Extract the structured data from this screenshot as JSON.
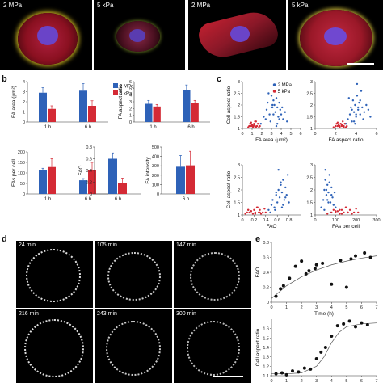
{
  "panel_a": {
    "images": [
      {
        "label": "2 MPa"
      },
      {
        "label": "5 kPa"
      },
      {
        "label": "2 MPa"
      },
      {
        "label": "5 kPa"
      }
    ]
  },
  "panel_letters": {
    "b": "b",
    "c": "c",
    "d": "d",
    "e": "e"
  },
  "colors": {
    "stiff": "#2e62b8",
    "soft": "#d42a35",
    "axis": "#333333"
  },
  "chart_data": [
    {
      "id": "fa-area",
      "type": "bar",
      "ylabel": "FA area (µm²)",
      "categories": [
        "1 h",
        "6 h"
      ],
      "ylim": [
        0,
        4
      ],
      "yticks": [
        0,
        1,
        2,
        3,
        4
      ],
      "series": [
        {
          "name": "2 MPa",
          "values": [
            2.9,
            3.1
          ],
          "errors": [
            0.5,
            0.7
          ]
        },
        {
          "name": "5 kPa",
          "values": [
            1.3,
            1.6
          ],
          "errors": [
            0.3,
            0.5
          ]
        }
      ],
      "legend": "top-right"
    },
    {
      "id": "fa-aspect",
      "type": "bar",
      "ylabel": "FA aspect ratio",
      "categories": [
        "1 h",
        "6 h"
      ],
      "ylim": [
        0,
        6
      ],
      "yticks": [
        0,
        1,
        2,
        3,
        4,
        5,
        6
      ],
      "series": [
        {
          "name": "2 MPa",
          "values": [
            2.7,
            4.8
          ],
          "errors": [
            0.5,
            0.7
          ]
        },
        {
          "name": "5 kPa",
          "values": [
            2.3,
            2.8
          ],
          "errors": [
            0.3,
            0.4
          ]
        }
      ]
    },
    {
      "id": "fas-per-cell",
      "type": "bar",
      "ylabel": "FAs per cell",
      "categories": [
        "1 h",
        "6 h"
      ],
      "ylim": [
        0,
        200
      ],
      "yticks": [
        0,
        50,
        100,
        150,
        200
      ],
      "series": [
        {
          "name": "2 MPa",
          "values": [
            112,
            65
          ],
          "errors": [
            10,
            8
          ]
        },
        {
          "name": "5 kPa",
          "values": [
            128,
            115
          ],
          "errors": [
            40,
            35
          ]
        }
      ]
    },
    {
      "id": "fao",
      "type": "bar",
      "ylabel": "FAO",
      "categories": [
        "6 h"
      ],
      "ylim": [
        0,
        0.8
      ],
      "yticks": [
        0,
        0.2,
        0.4,
        0.6,
        0.8
      ],
      "series": [
        {
          "name": "2 MPa",
          "values": [
            0.6
          ],
          "errors": [
            0.1
          ]
        },
        {
          "name": "5 kPa",
          "values": [
            0.19
          ],
          "errors": [
            0.08
          ]
        }
      ]
    },
    {
      "id": "fa-intensity",
      "type": "bar",
      "ylabel": "FA intensity",
      "categories": [
        "6 h"
      ],
      "ylim": [
        0,
        500
      ],
      "yticks": [
        0,
        100,
        200,
        300,
        400,
        500
      ],
      "series": [
        {
          "name": "2 MPa",
          "values": [
            290
          ],
          "errors": [
            120
          ]
        },
        {
          "name": "5 kPa",
          "values": [
            305
          ],
          "errors": [
            150
          ]
        }
      ]
    },
    {
      "id": "scatter-fa-area",
      "type": "scatter",
      "xlabel": "FA area (µm²)",
      "ylabel": "Cell aspect ratio",
      "xlim": [
        0,
        6
      ],
      "ylim": [
        1.0,
        3.0
      ],
      "xticks": [
        0,
        1,
        2,
        3,
        4,
        5,
        6
      ],
      "yticks": [
        1.0,
        1.5,
        2.0,
        2.5,
        3.0
      ],
      "series": [
        {
          "name": "2 MPa",
          "x": [
            1.9,
            2.2,
            2.5,
            2.6,
            2.8,
            3.0,
            3.1,
            3.2,
            3.3,
            3.4,
            3.5,
            3.6,
            3.7,
            3.8,
            3.9,
            4.0,
            4.1,
            4.2,
            4.4,
            2.9,
            3.4,
            3.0,
            2.7,
            3.6,
            3.8,
            4.6,
            3.2,
            2.4,
            3.1,
            3.5
          ],
          "y": [
            1.2,
            1.5,
            1.8,
            2.1,
            1.6,
            2.4,
            1.9,
            2.2,
            2.0,
            1.7,
            2.3,
            1.9,
            1.5,
            2.1,
            1.8,
            1.6,
            1.9,
            1.4,
            1.7,
            1.3,
            2.6,
            1.9,
            2.5,
            1.2,
            1.4,
            1.3,
            1.6,
            1.4,
            2.0,
            1.1
          ]
        },
        {
          "name": "5 kPa",
          "x": [
            0.6,
            0.7,
            0.8,
            0.9,
            1.0,
            1.1,
            1.2,
            1.3,
            1.4,
            1.5,
            1.6,
            1.7,
            1.8,
            0.9,
            1.0,
            1.2,
            1.4,
            1.1,
            0.8,
            1.3
          ],
          "y": [
            1.05,
            1.1,
            1.2,
            1.1,
            1.15,
            1.05,
            1.2,
            1.1,
            1.3,
            1.1,
            1.2,
            1.05,
            1.1,
            1.25,
            1.1,
            1.15,
            1.05,
            1.1,
            1.2,
            1.3
          ]
        }
      ],
      "legend": "top-left"
    },
    {
      "id": "scatter-fa-aspect",
      "type": "scatter",
      "xlabel": "FA aspect ratio",
      "ylabel": "",
      "xlim": [
        0,
        6
      ],
      "ylim": [
        1.0,
        3.0
      ],
      "xticks": [
        0,
        2,
        4,
        6
      ],
      "yticks": [
        1.0,
        1.5,
        2.0,
        2.5,
        3.0
      ],
      "series": [
        {
          "name": "2 MPa",
          "x": [
            3.0,
            3.2,
            3.4,
            3.5,
            3.6,
            3.7,
            3.8,
            3.9,
            4.0,
            4.1,
            4.2,
            4.3,
            4.4,
            4.5,
            4.6,
            4.8,
            5.0,
            5.2,
            3.3,
            3.9,
            4.1,
            4.7,
            3.6,
            4.0,
            4.4,
            5.4,
            3.8,
            4.2
          ],
          "y": [
            1.2,
            1.4,
            1.6,
            1.9,
            1.3,
            2.2,
            1.7,
            2.0,
            1.5,
            2.4,
            1.8,
            2.1,
            1.6,
            2.6,
            1.9,
            1.7,
            2.0,
            1.8,
            2.3,
            1.2,
            2.9,
            1.4,
            1.8,
            1.6,
            2.2,
            1.5,
            1.3,
            1.9
          ]
        },
        {
          "name": "5 kPa",
          "x": [
            1.8,
            2.0,
            2.1,
            2.2,
            2.3,
            2.4,
            2.5,
            2.6,
            2.7,
            2.8,
            2.9,
            3.0,
            3.1,
            2.2,
            2.4,
            2.6,
            2.8,
            2.0
          ],
          "y": [
            1.05,
            1.1,
            1.2,
            1.1,
            1.15,
            1.05,
            1.2,
            1.1,
            1.3,
            1.1,
            1.2,
            1.05,
            1.1,
            1.25,
            1.1,
            1.15,
            1.05,
            1.1
          ]
        }
      ]
    },
    {
      "id": "scatter-fao",
      "type": "scatter",
      "xlabel": "FAO",
      "ylabel": "Cell aspect ratio",
      "xlim": [
        0,
        1.0
      ],
      "ylim": [
        1.0,
        3.0
      ],
      "xticks": [
        0,
        0.2,
        0.4,
        0.6,
        0.8
      ],
      "yticks": [
        1.0,
        1.5,
        2.0,
        2.5,
        3.0
      ],
      "series": [
        {
          "name": "2 MPa",
          "x": [
            0.45,
            0.5,
            0.52,
            0.55,
            0.58,
            0.6,
            0.62,
            0.64,
            0.66,
            0.68,
            0.7,
            0.72,
            0.74,
            0.76,
            0.78,
            0.8,
            0.56,
            0.62,
            0.7,
            0.66,
            0.74,
            0.48,
            0.58,
            0.68
          ],
          "y": [
            1.2,
            1.4,
            1.6,
            1.3,
            1.8,
            1.5,
            2.0,
            1.7,
            2.2,
            1.9,
            2.4,
            1.6,
            2.1,
            1.8,
            2.6,
            1.5,
            1.2,
            2.8,
            1.4,
            2.3,
            1.7,
            1.1,
            1.9,
            1.3
          ]
        },
        {
          "name": "5 kPa",
          "x": [
            0.05,
            0.08,
            0.1,
            0.12,
            0.15,
            0.18,
            0.2,
            0.22,
            0.25,
            0.28,
            0.3,
            0.32,
            0.35,
            0.38,
            0.4,
            0.15,
            0.22,
            0.3,
            0.1,
            0.26
          ],
          "y": [
            1.05,
            1.1,
            1.2,
            1.1,
            1.15,
            1.05,
            1.2,
            1.1,
            1.3,
            1.1,
            1.2,
            1.05,
            1.1,
            1.25,
            1.1,
            1.15,
            1.05,
            1.1,
            1.2,
            1.3
          ]
        }
      ]
    },
    {
      "id": "scatter-fas",
      "type": "scatter",
      "xlabel": "FAs per cell",
      "ylabel": "",
      "xlim": [
        0,
        300
      ],
      "ylim": [
        1.0,
        3.0
      ],
      "xticks": [
        0,
        100,
        200,
        300
      ],
      "yticks": [
        1.0,
        1.5,
        2.0,
        2.5,
        3.0
      ],
      "series": [
        {
          "name": "2 MPa",
          "x": [
            30,
            40,
            45,
            50,
            55,
            60,
            65,
            70,
            75,
            80,
            85,
            90,
            95,
            100,
            50,
            60,
            70,
            80,
            45,
            65,
            55,
            75
          ],
          "y": [
            1.3,
            1.6,
            2.0,
            2.4,
            1.8,
            2.2,
            1.9,
            2.6,
            1.5,
            2.1,
            1.7,
            1.4,
            1.9,
            1.3,
            2.8,
            1.6,
            2.3,
            1.8,
            1.2,
            1.5,
            2.0,
            1.1
          ]
        },
        {
          "name": "5 kPa",
          "x": [
            60,
            80,
            90,
            100,
            110,
            120,
            130,
            140,
            150,
            160,
            170,
            180,
            190,
            200,
            210,
            100,
            130,
            160,
            120,
            150
          ],
          "y": [
            1.05,
            1.1,
            1.2,
            1.1,
            1.15,
            1.05,
            1.2,
            1.1,
            1.3,
            1.1,
            1.2,
            1.05,
            1.1,
            1.25,
            1.1,
            1.15,
            1.05,
            1.1,
            1.2,
            1.3
          ]
        }
      ]
    },
    {
      "id": "fao-time",
      "type": "scatter",
      "xlabel": "Time (h)",
      "ylabel": "FAO",
      "xlim": [
        0,
        7
      ],
      "ylim": [
        0,
        0.8
      ],
      "xticks": [
        0,
        1,
        2,
        3,
        4,
        5,
        6,
        7
      ],
      "yticks": [
        0,
        0.2,
        0.4,
        0.6,
        0.8
      ],
      "series": [
        {
          "name": "",
          "x": [
            0.3,
            0.6,
            0.8,
            1.2,
            1.6,
            2.0,
            2.3,
            2.5,
            2.9,
            3.0,
            3.4,
            4.0,
            4.6,
            5.0,
            5.3,
            5.6,
            6.2,
            6.6
          ],
          "y": [
            0.08,
            0.18,
            0.22,
            0.32,
            0.48,
            0.55,
            0.38,
            0.42,
            0.45,
            0.5,
            0.52,
            0.24,
            0.56,
            0.2,
            0.58,
            0.62,
            0.66,
            0.6
          ]
        }
      ],
      "fit": {
        "x": [
          0,
          1,
          2,
          3,
          4,
          5,
          6,
          7
        ],
        "y": [
          0.05,
          0.22,
          0.34,
          0.43,
          0.5,
          0.55,
          0.59,
          0.62
        ]
      }
    },
    {
      "id": "aspect-time",
      "type": "scatter",
      "xlabel": "",
      "ylabel": "Cell aspect ratio",
      "xlim": [
        0,
        7
      ],
      "ylim": [
        1.1,
        1.7
      ],
      "xticks": [
        0,
        1,
        2,
        3,
        4,
        5,
        6,
        7
      ],
      "yticks": [
        1.1,
        1.2,
        1.3,
        1.4,
        1.5,
        1.6
      ],
      "series": [
        {
          "name": "",
          "x": [
            0.3,
            0.7,
            1.0,
            1.4,
            1.8,
            2.2,
            2.6,
            3.0,
            3.3,
            3.6,
            4.0,
            4.4,
            4.8,
            5.2,
            5.6,
            6.0,
            6.4
          ],
          "y": [
            1.12,
            1.13,
            1.11,
            1.15,
            1.14,
            1.18,
            1.17,
            1.28,
            1.35,
            1.4,
            1.52,
            1.63,
            1.65,
            1.68,
            1.62,
            1.66,
            1.64
          ]
        }
      ],
      "fit": {
        "x": [
          0,
          1,
          2,
          3,
          3.5,
          4,
          4.5,
          5,
          6,
          7
        ],
        "y": [
          1.12,
          1.12,
          1.13,
          1.2,
          1.3,
          1.45,
          1.56,
          1.62,
          1.65,
          1.66
        ]
      }
    }
  ],
  "panel_d": {
    "frames": [
      {
        "time": "24 min"
      },
      {
        "time": "105 min"
      },
      {
        "time": "147 min"
      },
      {
        "time": "216 min"
      },
      {
        "time": "243 min"
      },
      {
        "time": "300 min"
      }
    ]
  }
}
